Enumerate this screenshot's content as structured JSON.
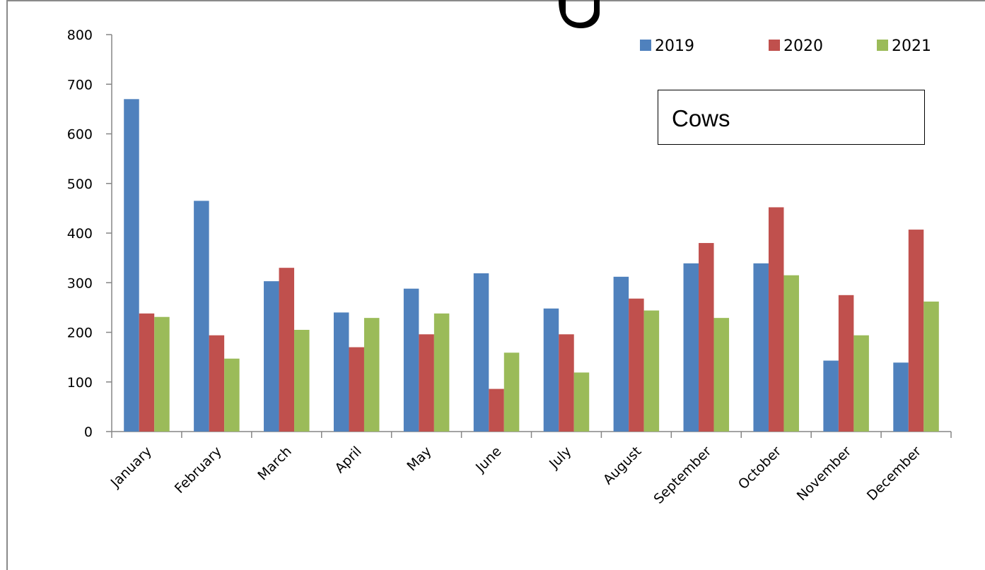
{
  "colors": {
    "series_2019": "#4F81BD",
    "series_2020": "#C0504D",
    "series_2021": "#9BBB59"
  },
  "label_box": {
    "text": "Cows"
  },
  "chart_data": {
    "type": "bar",
    "title": "",
    "xlabel": "",
    "ylabel": "",
    "ylim": [
      0,
      800
    ],
    "yticks": [
      0,
      100,
      200,
      300,
      400,
      500,
      600,
      700,
      800
    ],
    "grid": false,
    "legend_position": "top-right",
    "categories": [
      "January",
      "February",
      "March",
      "April",
      "May",
      "June",
      "July",
      "August",
      "September",
      "October",
      "November",
      "December"
    ],
    "series": [
      {
        "name": "2019",
        "color": "#4F81BD",
        "values": [
          670,
          465,
          303,
          240,
          288,
          319,
          248,
          312,
          339,
          339,
          143,
          139
        ]
      },
      {
        "name": "2020",
        "color": "#C0504D",
        "values": [
          238,
          194,
          330,
          170,
          196,
          86,
          196,
          268,
          380,
          452,
          275,
          407
        ]
      },
      {
        "name": "2021",
        "color": "#9BBB59",
        "values": [
          231,
          147,
          205,
          229,
          238,
          159,
          119,
          244,
          229,
          315,
          194,
          262
        ]
      }
    ]
  }
}
